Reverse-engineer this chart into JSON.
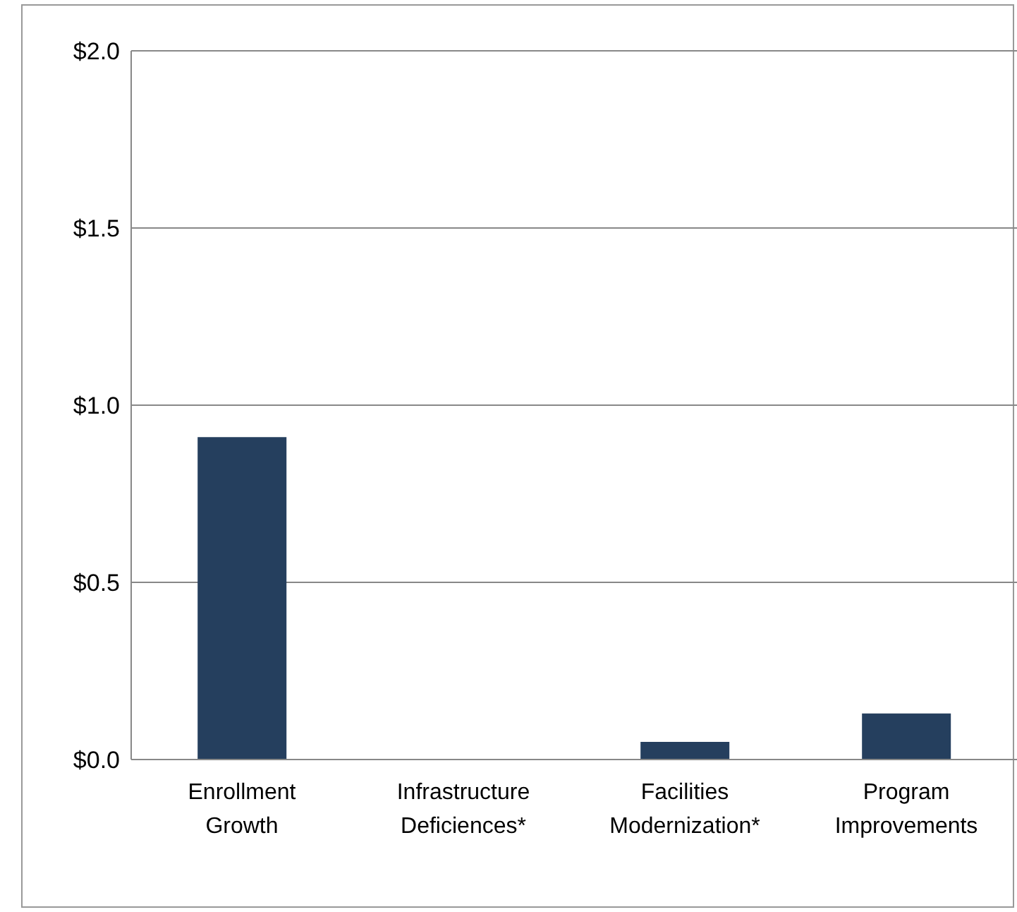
{
  "chart_data": {
    "type": "bar",
    "categories": [
      "Enrollment Growth",
      "Infrastructure Deficiences*",
      "Facilities Modernization*",
      "Program Improvements"
    ],
    "values": [
      0.91,
      0,
      0.05,
      0.13
    ],
    "color": "#253f5e",
    "ylim": [
      0,
      2
    ],
    "yticks": [
      {
        "value": 0,
        "label": "$0.0"
      },
      {
        "value": 0.5,
        "label": "$0.5"
      },
      {
        "value": 1,
        "label": "$1.0"
      },
      {
        "value": 1.5,
        "label": "$1.5"
      },
      {
        "value": 2,
        "label": "$2.0"
      }
    ],
    "grid": "y"
  }
}
